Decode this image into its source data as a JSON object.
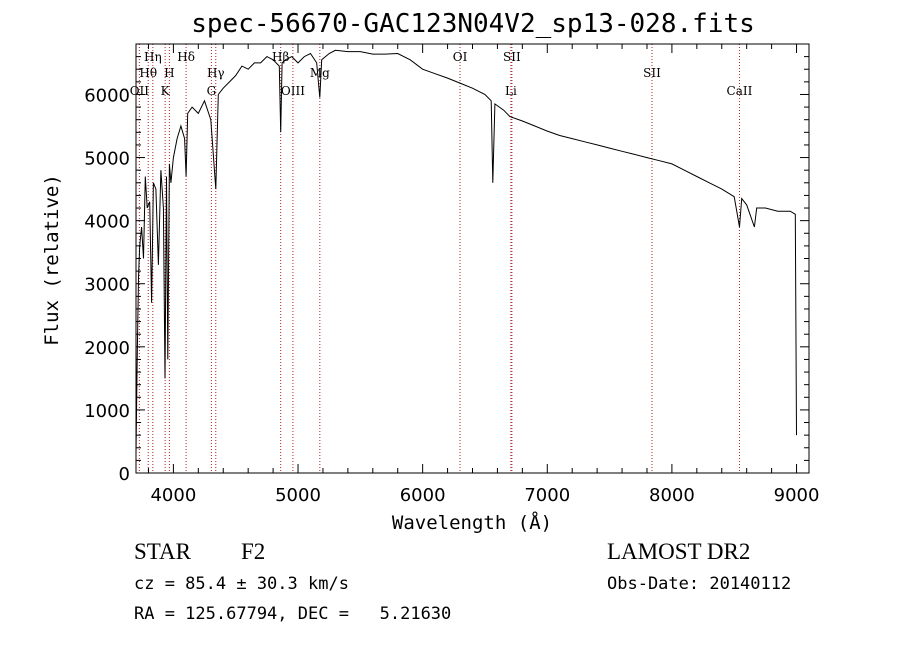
{
  "chart_data": {
    "type": "line",
    "title": "spec-56670-GAC123N04V2_sp13-028.fits",
    "xlabel": "Wavelength (Å)",
    "ylabel": "Flux (relative)",
    "xlim": [
      3700,
      9100
    ],
    "ylim": [
      0,
      6800
    ],
    "x_ticks": [
      4000,
      5000,
      6000,
      7000,
      8000,
      9000
    ],
    "y_ticks": [
      0,
      1000,
      2000,
      3000,
      4000,
      5000,
      6000
    ],
    "spectrum": {
      "x": [
        3700,
        3710,
        3720,
        3730,
        3745,
        3760,
        3775,
        3790,
        3810,
        3825,
        3840,
        3860,
        3880,
        3900,
        3920,
        3933,
        3945,
        3955,
        3968,
        3980,
        4000,
        4030,
        4060,
        4090,
        4102,
        4115,
        4150,
        4200,
        4250,
        4300,
        4340,
        4360,
        4400,
        4450,
        4500,
        4550,
        4600,
        4650,
        4700,
        4750,
        4800,
        4850,
        4861,
        4872,
        4900,
        4950,
        5000,
        5050,
        5100,
        5150,
        5175,
        5190,
        5250,
        5300,
        5400,
        5500,
        5600,
        5700,
        5800,
        5900,
        6000,
        6100,
        6200,
        6300,
        6400,
        6500,
        6550,
        6563,
        6580,
        6650,
        6700,
        6800,
        6900,
        7000,
        7100,
        7200,
        7300,
        7400,
        7500,
        7600,
        7700,
        7800,
        7900,
        8000,
        8100,
        8200,
        8300,
        8400,
        8500,
        8542,
        8560,
        8600,
        8662,
        8680,
        8750,
        8850,
        8950,
        8990,
        9000
      ],
      "y": [
        300,
        1800,
        3100,
        3600,
        3900,
        3400,
        4700,
        4200,
        4300,
        2700,
        4600,
        4500,
        3300,
        4800,
        4200,
        1500,
        4700,
        1800,
        4900,
        4600,
        5000,
        5300,
        5500,
        5300,
        4700,
        5700,
        5800,
        5700,
        5900,
        5600,
        4500,
        6000,
        6100,
        6200,
        6300,
        6450,
        6400,
        6500,
        6500,
        6600,
        6550,
        6450,
        5400,
        6500,
        6550,
        6600,
        6500,
        6600,
        6650,
        6500,
        5950,
        6550,
        6650,
        6700,
        6680,
        6680,
        6640,
        6640,
        6650,
        6550,
        6400,
        6330,
        6260,
        6180,
        6100,
        6000,
        5900,
        4600,
        5850,
        5750,
        5650,
        5580,
        5500,
        5420,
        5350,
        5300,
        5250,
        5200,
        5150,
        5100,
        5050,
        5000,
        4950,
        4900,
        4800,
        4700,
        4600,
        4500,
        4380,
        3900,
        4350,
        4250,
        3900,
        4200,
        4200,
        4150,
        4150,
        4100,
        600
      ]
    },
    "line_markers": [
      {
        "name": "Hη",
        "x": 3835,
        "row": 1
      },
      {
        "name": "Hθ",
        "x": 3798,
        "row": 2
      },
      {
        "name": "OII",
        "x": 3727,
        "row": 3
      },
      {
        "name": "Hδ",
        "x": 4102,
        "row": 1
      },
      {
        "name": "H",
        "x": 3968,
        "row": 2
      },
      {
        "name": "K",
        "x": 3934,
        "row": 3
      },
      {
        "name": "Hγ",
        "x": 4340,
        "row": 2
      },
      {
        "name": "G",
        "x": 4305,
        "row": 3
      },
      {
        "name": "Hβ",
        "x": 4861,
        "row": 1
      },
      {
        "name": "OIII",
        "x": 4959,
        "row": 3
      },
      {
        "name": "Mg",
        "x": 5175,
        "row": 2
      },
      {
        "name": "OI",
        "x": 6300,
        "row": 1
      },
      {
        "name": "SII",
        "x": 6716,
        "row": 1
      },
      {
        "name": "Li",
        "x": 6708,
        "row": 3
      },
      {
        "name": "SII",
        "x": 7840,
        "row": 2
      },
      {
        "name": "CaII",
        "x": 8542,
        "row": 3
      }
    ]
  },
  "info": {
    "object_class": "STAR",
    "subclass": "F2",
    "release": "LAMOST DR2",
    "cz": "cz = 85.4 ± 30.3 km/s",
    "obs_date": "Obs-Date: 20140112",
    "coords": "RA = 125.67794, DEC =   5.21630"
  },
  "colors": {
    "spectrum": "#000000",
    "marker_line": "#b22222",
    "axis": "#000000"
  }
}
